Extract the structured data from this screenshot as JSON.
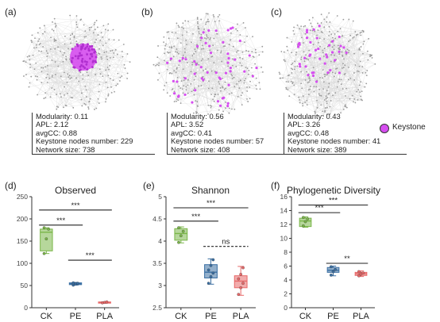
{
  "panels": {
    "network": [
      {
        "label": "(a)",
        "stats": {
          "modularity": "Modularity: 0.11",
          "apl": "APL: 2.12",
          "avgcc": "avgCC: 0.88",
          "keystone": "Keystone nodes number: 229",
          "size": "Network size: 738"
        }
      },
      {
        "label": "(b)",
        "stats": {
          "modularity": "Modularity: 0.56",
          "apl": "APL: 3.52",
          "avgcc": "avgCC: 0.41",
          "keystone": "Keystone nodes number: 57",
          "size": "Network size: 408"
        }
      },
      {
        "label": "(c)",
        "stats": {
          "modularity": "Modularity: 0.43",
          "apl": "APL: 3.26",
          "avgcc": "avgCC: 0.48",
          "keystone": "Keystone nodes number: 41",
          "size": "Network size: 389"
        }
      }
    ],
    "legend": {
      "keystone": "Keystone",
      "keystone_color": "#d64ef0"
    }
  },
  "colors": {
    "CK": "#7ab648",
    "PE": "#3a6fa3",
    "PLA": "#e86868",
    "node": "#9a9a9a"
  },
  "chart_data": [
    {
      "type": "box",
      "label": "(d)",
      "title": "Observed",
      "categories": [
        "CK",
        "PE",
        "PLA"
      ],
      "ylim": [
        0,
        250
      ],
      "yticks": [
        0,
        50,
        100,
        150,
        200,
        250
      ],
      "boxes": [
        {
          "q1": 128,
          "median": 170,
          "q3": 177,
          "min": 122,
          "max": 180,
          "points": [
            122,
            155,
            177,
            180
          ]
        },
        {
          "q1": 52,
          "median": 54,
          "q3": 56,
          "min": 51,
          "max": 57,
          "points": [
            51,
            53,
            55,
            56
          ]
        },
        {
          "q1": 11,
          "median": 12,
          "q3": 13,
          "min": 10,
          "max": 13,
          "points": [
            11,
            12,
            13
          ]
        }
      ],
      "significance": [
        {
          "from": 0,
          "to": 2,
          "y": 220,
          "label": "***",
          "dashed": false
        },
        {
          "from": 0,
          "to": 1,
          "y": 186,
          "label": "***",
          "dashed": false
        },
        {
          "from": 1,
          "to": 2,
          "y": 107,
          "label": "***",
          "dashed": false
        }
      ]
    },
    {
      "type": "box",
      "label": "(e)",
      "title": "Shannon",
      "categories": [
        "CK",
        "PE",
        "PLA"
      ],
      "ylim": [
        2.5,
        5.0
      ],
      "yticks": [
        2.5,
        3.0,
        3.5,
        4.0,
        4.5,
        5.0
      ],
      "boxes": [
        {
          "q1": 4.02,
          "median": 4.17,
          "q3": 4.28,
          "min": 3.96,
          "max": 4.32,
          "points": [
            3.97,
            4.12,
            4.22,
            4.3
          ]
        },
        {
          "q1": 3.17,
          "median": 3.3,
          "q3": 3.47,
          "min": 3.03,
          "max": 3.6,
          "points": [
            3.05,
            3.2,
            3.28,
            3.35,
            3.45,
            3.58
          ]
        },
        {
          "q1": 2.95,
          "median": 3.1,
          "q3": 3.22,
          "min": 2.78,
          "max": 3.43,
          "points": [
            2.8,
            2.95,
            3.05,
            3.15,
            3.25,
            3.4
          ]
        }
      ],
      "significance": [
        {
          "from": 0,
          "to": 2,
          "y": 4.75,
          "label": "***",
          "dashed": false
        },
        {
          "from": 0,
          "to": 1,
          "y": 4.45,
          "label": "***",
          "dashed": false
        },
        {
          "from": 1,
          "to": 2,
          "y": 3.88,
          "label": "ns",
          "dashed": true
        }
      ]
    },
    {
      "type": "box",
      "label": "(f)",
      "title": "Phylogenetic Diversity",
      "categories": [
        "CK",
        "PE",
        "PLA"
      ],
      "ylim": [
        0,
        16
      ],
      "yticks": [
        0,
        2,
        4,
        6,
        8,
        10,
        12,
        14,
        16
      ],
      "boxes": [
        {
          "q1": 11.7,
          "median": 12.5,
          "q3": 12.9,
          "min": 11.6,
          "max": 13.1,
          "points": [
            11.8,
            12.4,
            12.8,
            13.0
          ]
        },
        {
          "q1": 5.1,
          "median": 5.4,
          "q3": 5.8,
          "min": 4.6,
          "max": 6.0,
          "points": [
            4.7,
            5.2,
            5.5,
            5.9
          ]
        },
        {
          "q1": 4.65,
          "median": 4.9,
          "q3": 5.1,
          "min": 4.5,
          "max": 5.3,
          "points": [
            4.6,
            4.85,
            5.0,
            5.2
          ]
        }
      ],
      "significance": [
        {
          "from": 0,
          "to": 2,
          "y": 14.8,
          "label": "***",
          "dashed": false
        },
        {
          "from": 0,
          "to": 1,
          "y": 13.7,
          "label": "***",
          "dashed": false
        },
        {
          "from": 1,
          "to": 2,
          "y": 6.4,
          "label": "**",
          "dashed": false
        }
      ]
    }
  ]
}
